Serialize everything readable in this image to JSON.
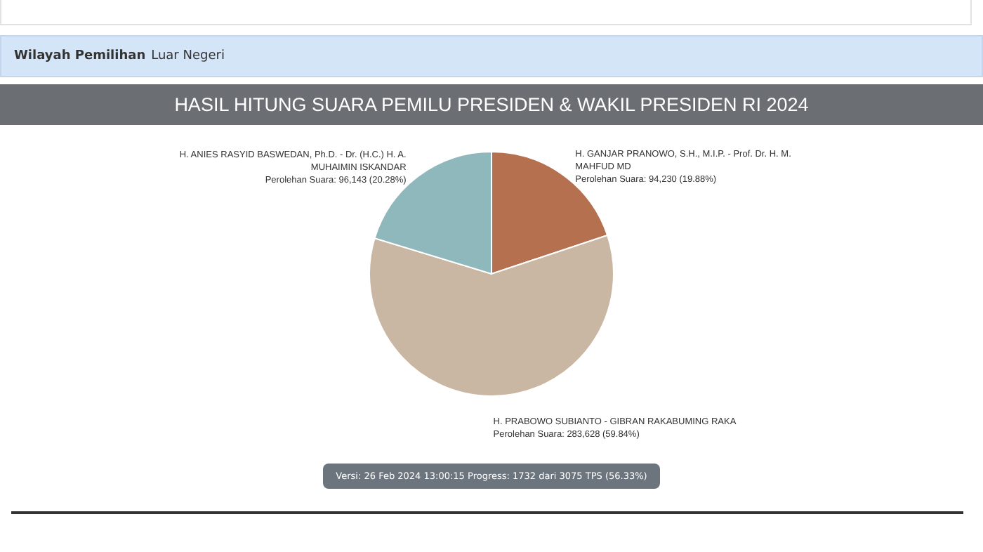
{
  "chart_data": {
    "type": "pie",
    "title": "HASIL HITUNG SUARA PEMILU PRESIDEN & WAKIL PRESIDEN RI 2024",
    "categories": [
      "H. GANJAR PRANOWO, S.H., M.I.P. - Prof. Dr. H. M. MAHFUD MD",
      "H. PRABOWO SUBIANTO - GIBRAN RAKABUMING RAKA",
      "H. ANIES RASYID BASWEDAN, Ph.D. - Dr. (H.C.) H. A. MUHAIMIN ISKANDAR"
    ],
    "values": [
      94230,
      283628,
      96143
    ],
    "colors": [
      "#b5704f",
      "#c9b7a3",
      "#8fb8bc"
    ],
    "value_labels": [
      "Perolehan Suara: 94,230 (19.88%)",
      "Perolehan Suara: 283,628 (59.84%)",
      "Perolehan Suara: 96,143 (20.28%)"
    ],
    "annotations": [
      "Wilayah Pemilihan",
      "Luar Negeri",
      "Versi: 26 Feb 2024 13:00:15 Progress: 1732 dari 3075 TPS (56.33%)"
    ]
  }
}
